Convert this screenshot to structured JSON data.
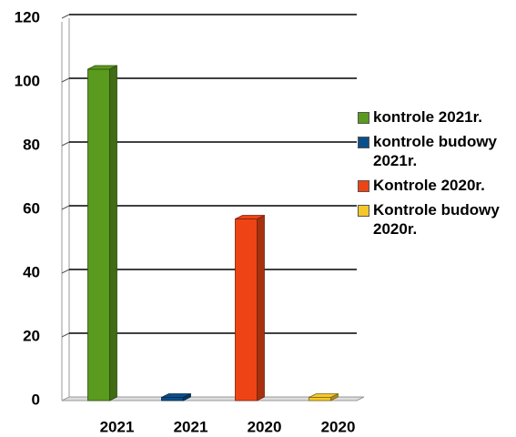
{
  "chart_data": {
    "type": "bar3d",
    "categories": [
      "2021",
      "2021",
      "2020",
      "2020"
    ],
    "series": [
      {
        "name": "kontrole 2021r.",
        "color": "#5a9a1e",
        "values": [
          104,
          null,
          null,
          null
        ]
      },
      {
        "name": "kontrole budowy 2021r.",
        "color": "#0b4e8c",
        "values": [
          null,
          1,
          null,
          null
        ]
      },
      {
        "name": "Kontrole 2020r.",
        "color": "#ee4415",
        "values": [
          null,
          null,
          57,
          null
        ]
      },
      {
        "name": "Kontrole budowy 2020r.",
        "color": "#f4c829",
        "values": [
          null,
          null,
          null,
          1
        ]
      }
    ],
    "ylim": [
      0,
      120
    ],
    "yticks": [
      0,
      20,
      40,
      60,
      80,
      100,
      120
    ],
    "grid": true
  }
}
